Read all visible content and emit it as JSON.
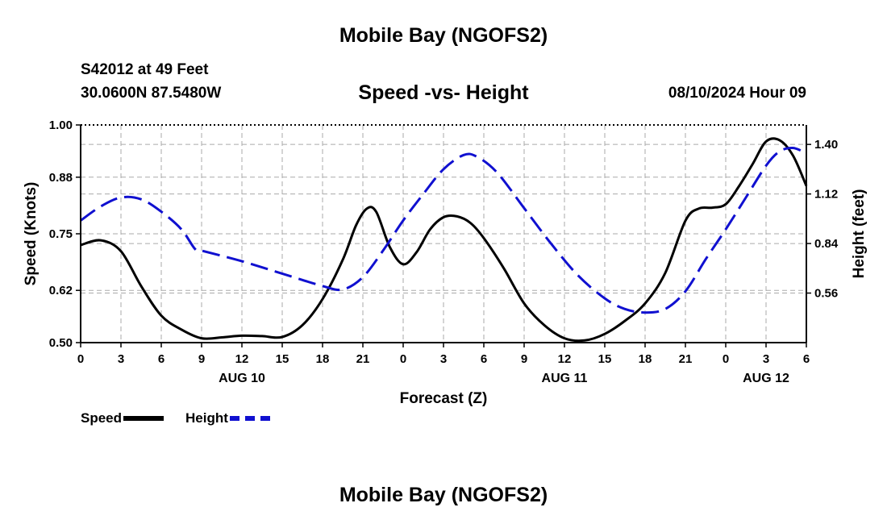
{
  "header": {
    "title": "Mobile Bay (NGOFS2)",
    "station": "S42012 at 49 Feet",
    "coords": "30.0600N  87.5480W",
    "subtitle": "Speed -vs- Height",
    "datetime": "08/10/2024 Hour 09"
  },
  "footer": {
    "title": "Mobile Bay (NGOFS2)"
  },
  "legend": {
    "speed": "Speed",
    "height": "Height"
  },
  "chart_data": {
    "type": "line",
    "xlabel": "Forecast (Z)",
    "ylabel_left": "Speed (Knots)",
    "ylabel_right": "Height (feet)",
    "x_range_hours": [
      0,
      54
    ],
    "x_ticks": [
      {
        "hour": 0,
        "label": "0"
      },
      {
        "hour": 3,
        "label": "3"
      },
      {
        "hour": 6,
        "label": "6"
      },
      {
        "hour": 9,
        "label": "9"
      },
      {
        "hour": 12,
        "label": "12"
      },
      {
        "hour": 15,
        "label": "15"
      },
      {
        "hour": 18,
        "label": "18"
      },
      {
        "hour": 21,
        "label": "21"
      },
      {
        "hour": 24,
        "label": "0"
      },
      {
        "hour": 27,
        "label": "3"
      },
      {
        "hour": 30,
        "label": "6"
      },
      {
        "hour": 33,
        "label": "9"
      },
      {
        "hour": 36,
        "label": "12"
      },
      {
        "hour": 39,
        "label": "15"
      },
      {
        "hour": 42,
        "label": "18"
      },
      {
        "hour": 45,
        "label": "21"
      },
      {
        "hour": 48,
        "label": "0"
      },
      {
        "hour": 51,
        "label": "3"
      },
      {
        "hour": 54,
        "label": "6"
      }
    ],
    "date_labels": [
      {
        "hour": 12,
        "label": "AUG 10"
      },
      {
        "hour": 36,
        "label": "AUG 11"
      },
      {
        "hour": 51,
        "label": "AUG 12"
      }
    ],
    "y_left_range": [
      0.5,
      1.0
    ],
    "y_left_ticks": [
      "1.00",
      "0.88",
      "0.75",
      "0.62",
      "0.50"
    ],
    "y_right_range": [
      0.28,
      1.51
    ],
    "y_right_ticks": [
      "1.40",
      "1.12",
      "0.84",
      "0.56"
    ],
    "grid": true,
    "legend_position": "bottom-left",
    "colors": {
      "speed": "#000000",
      "height": "#1010d0",
      "grid": "#aaaaaa"
    },
    "series": [
      {
        "name": "Speed",
        "axis": "left",
        "style": "solid",
        "points": [
          [
            0,
            0.724
          ],
          [
            1.5,
            0.735
          ],
          [
            3,
            0.71
          ],
          [
            4.5,
            0.63
          ],
          [
            6,
            0.562
          ],
          [
            7.5,
            0.53
          ],
          [
            9,
            0.51
          ],
          [
            10.5,
            0.512
          ],
          [
            12,
            0.516
          ],
          [
            13.5,
            0.515
          ],
          [
            15,
            0.513
          ],
          [
            16.5,
            0.54
          ],
          [
            18,
            0.6
          ],
          [
            19.5,
            0.69
          ],
          [
            20.5,
            0.77
          ],
          [
            21.3,
            0.808
          ],
          [
            22,
            0.8
          ],
          [
            23,
            0.72
          ],
          [
            24,
            0.68
          ],
          [
            25,
            0.708
          ],
          [
            26,
            0.76
          ],
          [
            27,
            0.788
          ],
          [
            28,
            0.79
          ],
          [
            29,
            0.775
          ],
          [
            30,
            0.74
          ],
          [
            31.5,
            0.67
          ],
          [
            33,
            0.59
          ],
          [
            34.5,
            0.54
          ],
          [
            36,
            0.51
          ],
          [
            37.5,
            0.505
          ],
          [
            39,
            0.52
          ],
          [
            40.5,
            0.55
          ],
          [
            42,
            0.59
          ],
          [
            43.5,
            0.66
          ],
          [
            45,
            0.78
          ],
          [
            46,
            0.808
          ],
          [
            47,
            0.81
          ],
          [
            48,
            0.818
          ],
          [
            49,
            0.86
          ],
          [
            50,
            0.91
          ],
          [
            51,
            0.962
          ],
          [
            52,
            0.965
          ],
          [
            53,
            0.93
          ],
          [
            54,
            0.86
          ]
        ]
      },
      {
        "name": "Height",
        "axis": "right",
        "style": "dashed",
        "points": [
          [
            0,
            0.97
          ],
          [
            1.5,
            1.05
          ],
          [
            3,
            1.1
          ],
          [
            4.5,
            1.09
          ],
          [
            6,
            1.02
          ],
          [
            7.5,
            0.92
          ],
          [
            8.5,
            0.81
          ],
          [
            9,
            0.8
          ],
          [
            12,
            0.74
          ],
          [
            15,
            0.67
          ],
          [
            18,
            0.6
          ],
          [
            19.5,
            0.58
          ],
          [
            21,
            0.65
          ],
          [
            22.5,
            0.8
          ],
          [
            24,
            0.97
          ],
          [
            25.5,
            1.12
          ],
          [
            27,
            1.26
          ],
          [
            28.5,
            1.34
          ],
          [
            29.5,
            1.33
          ],
          [
            31,
            1.24
          ],
          [
            33,
            1.04
          ],
          [
            35,
            0.84
          ],
          [
            37,
            0.66
          ],
          [
            39,
            0.53
          ],
          [
            40.5,
            0.47
          ],
          [
            42,
            0.45
          ],
          [
            43.5,
            0.47
          ],
          [
            45,
            0.57
          ],
          [
            46.5,
            0.75
          ],
          [
            48,
            0.92
          ],
          [
            49.5,
            1.1
          ],
          [
            51,
            1.28
          ],
          [
            52,
            1.36
          ],
          [
            53,
            1.38
          ],
          [
            54,
            1.35
          ]
        ]
      }
    ]
  }
}
